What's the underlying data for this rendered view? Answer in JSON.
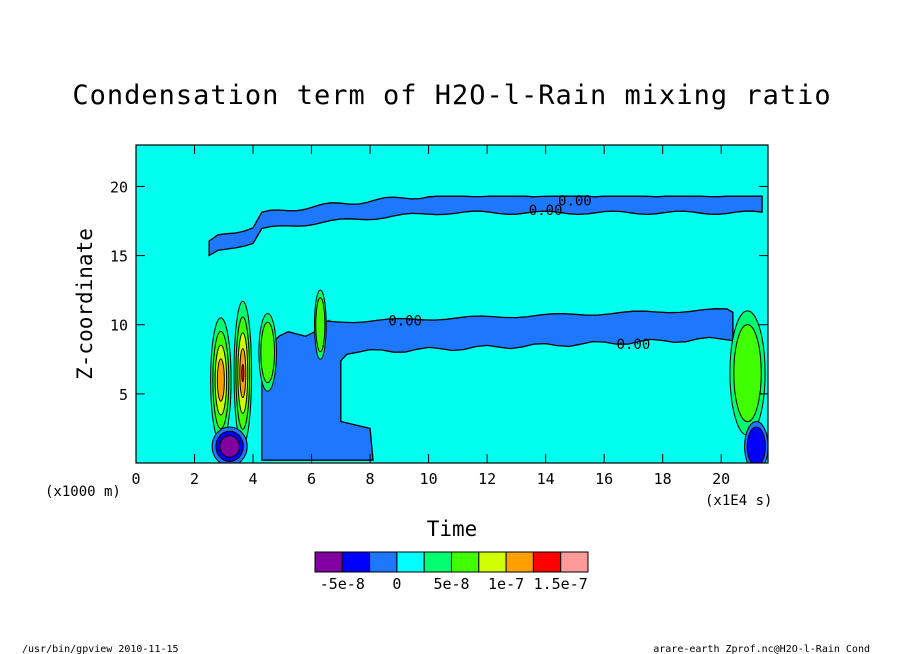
{
  "chart_data": {
    "type": "heatmap",
    "title": "Condensation term of H2O-l-Rain mixing ratio",
    "xlabel": "Time",
    "ylabel": "Z-coordinate",
    "x_scale_label": "(x1E4 s)",
    "y_scale_label": "(x1000 m)",
    "xlim": [
      0,
      21.6
    ],
    "ylim": [
      0,
      23
    ],
    "x_ticks": [
      0,
      2,
      4,
      6,
      8,
      10,
      12,
      14,
      16,
      18,
      20
    ],
    "y_ticks": [
      5,
      10,
      15,
      20
    ],
    "contour_labels": [
      {
        "text": "0.00",
        "x": 15.0,
        "z": 19.0
      },
      {
        "text": "0.00",
        "x": 14.0,
        "z": 18.3
      },
      {
        "text": "0.00",
        "x": 9.2,
        "z": 10.3
      },
      {
        "text": "0.00",
        "x": 17.0,
        "z": 8.6
      }
    ],
    "colorbar": {
      "colors": [
        "#8000a0",
        "#0000ff",
        "#1e78ff",
        "#00ffff",
        "#00ff70",
        "#40ff00",
        "#d0ff00",
        "#ffa000",
        "#ff0000",
        "#ff9a9a"
      ],
      "labels": [
        "-5e-8",
        "0",
        "5e-8",
        "1e-7",
        "1.5e-7"
      ]
    },
    "background_color": "#00ffee"
  },
  "footer": {
    "left": "/usr/bin/gpview   2010-11-15",
    "right": "arare-earth_Zprof.nc@H2O-l-Rain_Cond"
  }
}
